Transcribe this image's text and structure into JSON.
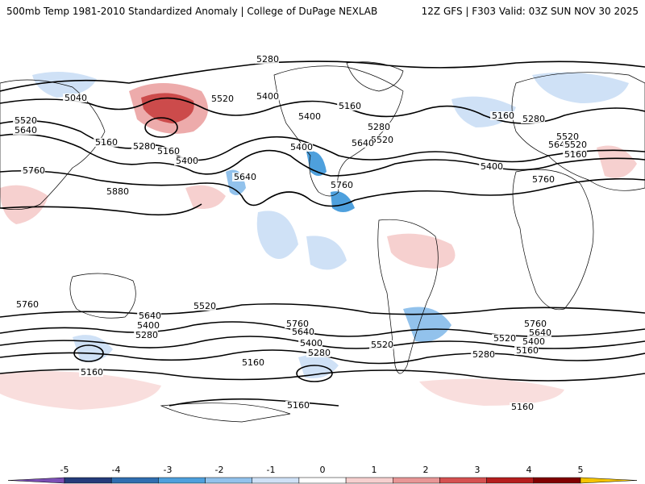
{
  "header": {
    "title_left": "500mb Temp 1981-2010 Standardized Anomaly | College of DuPage NEXLAB",
    "title_right": "12Z GFS | F303 Valid: 03Z SUN NOV 30 2025"
  },
  "map": {
    "contour_labels": [
      "5280",
      "5040",
      "5520",
      "5640",
      "5160",
      "5280",
      "5160",
      "5400",
      "5520",
      "5400",
      "5760",
      "5880",
      "5640",
      "5400",
      "5160",
      "5280",
      "5520",
      "5640",
      "5760",
      "5400",
      "5160",
      "5280",
      "5520",
      "5400",
      "5760",
      "5640",
      "5520",
      "5160",
      "5760",
      "5640",
      "5520",
      "5400",
      "5280",
      "5760",
      "5640",
      "5400",
      "5280",
      "5160",
      "5520",
      "5160",
      "5760",
      "5640",
      "5520",
      "5400",
      "5160",
      "5280",
      "5160",
      "5160"
    ],
    "colors": {
      "ocean": "#ffffff",
      "land_outline": "#000000",
      "contour": "#000000"
    }
  },
  "colorbar": {
    "ticks": [
      "-5",
      "-4",
      "-3",
      "-2",
      "-1",
      "0",
      "1",
      "2",
      "3",
      "4",
      "5"
    ],
    "colors": [
      "#7b4fb5",
      "#243b7a",
      "#2f6eb0",
      "#4ea0dd",
      "#92c2ec",
      "#cfe1f6",
      "#ffffff",
      "#f6d0cf",
      "#e89696",
      "#d65151",
      "#b51e1e",
      "#800000",
      "#f5c400"
    ]
  }
}
